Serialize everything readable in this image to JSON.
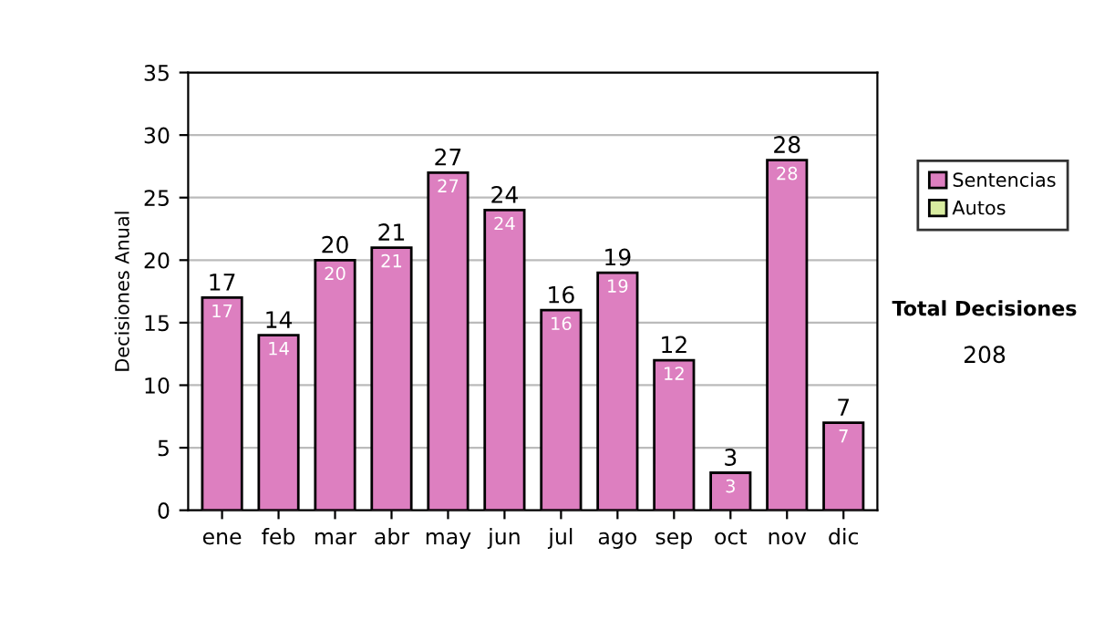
{
  "chart_data": {
    "type": "bar",
    "stacked": true,
    "ylabel": "Decisiones Anual",
    "categories": [
      "ene",
      "feb",
      "mar",
      "abr",
      "may",
      "jun",
      "jul",
      "ago",
      "sep",
      "oct",
      "nov",
      "dic"
    ],
    "series": [
      {
        "name": "Sentencias",
        "color": "#dd7fc0",
        "values": [
          17,
          14,
          20,
          21,
          27,
          24,
          16,
          19,
          12,
          3,
          28,
          7
        ]
      },
      {
        "name": "Autos",
        "color": "#d8eca0",
        "values": [
          null,
          null,
          null,
          null,
          null,
          null,
          null,
          null,
          null,
          null,
          null,
          null
        ]
      }
    ],
    "data_labels": true,
    "totals": [
      "17",
      "14",
      "20",
      "21",
      "27",
      "24",
      "16",
      "19",
      "12",
      "3",
      "28",
      "7"
    ],
    "ylim": [
      0,
      35
    ],
    "yticks": [
      0,
      5,
      10,
      15,
      20,
      25,
      30,
      35
    ],
    "grid": "y",
    "legend": "right",
    "annotations": [
      "Total Decisiones",
      "208"
    ]
  }
}
